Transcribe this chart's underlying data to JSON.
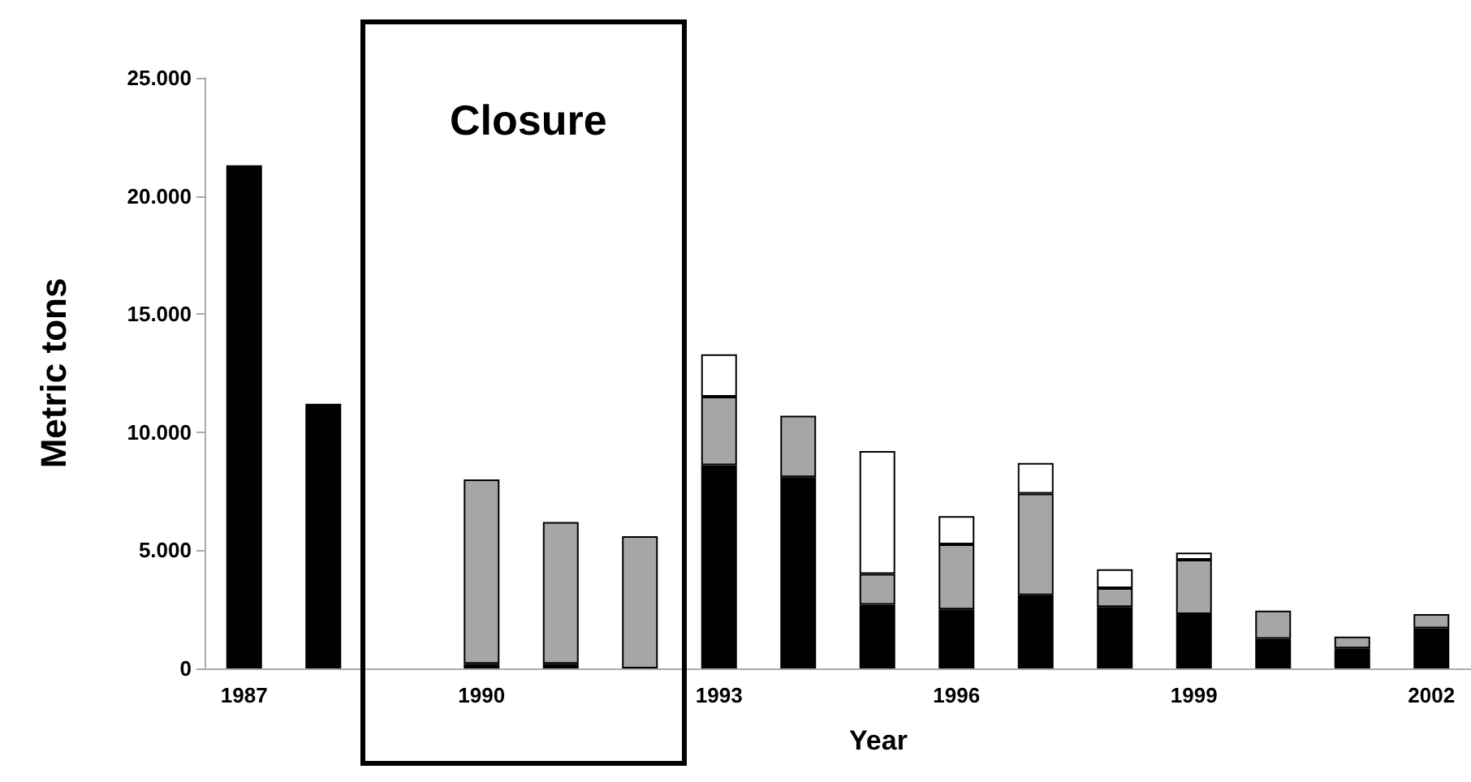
{
  "chart_data": {
    "type": "bar",
    "stacked": true,
    "xlabel": "Year",
    "ylabel": "Metric tons",
    "categories": [
      "1987",
      null,
      null,
      "1990",
      null,
      null,
      "1993",
      null,
      null,
      "1996",
      null,
      null,
      "1999",
      null,
      null,
      "2002"
    ],
    "series": [
      {
        "color": "#000000",
        "values": [
          21300,
          11200,
          null,
          200,
          200,
          null,
          8600,
          8100,
          2700,
          2500,
          3100,
          2600,
          2300,
          1250,
          850,
          1700
        ]
      },
      {
        "color": "#a6a6a6",
        "values": [
          null,
          null,
          null,
          7800,
          6000,
          5600,
          2900,
          2600,
          1300,
          2750,
          4300,
          800,
          2300,
          1200,
          500,
          600
        ]
      },
      {
        "color": "#ffffff",
        "values": [
          null,
          null,
          null,
          null,
          null,
          null,
          1800,
          null,
          5200,
          1200,
          1300,
          800,
          300,
          null,
          null,
          null
        ]
      }
    ],
    "ylim": [
      0,
      25000
    ],
    "yticks": [
      0,
      {
        "value": 5000,
        "label": "5.000"
      },
      {
        "value": 10000,
        "label": "10.000"
      },
      {
        "value": 15000,
        "label": "15.000"
      },
      {
        "value": 20000,
        "label": "20.000"
      },
      {
        "value": 25000,
        "label": "25.000"
      }
    ],
    "annotations": [
      "Closure"
    ],
    "grid": false
  }
}
